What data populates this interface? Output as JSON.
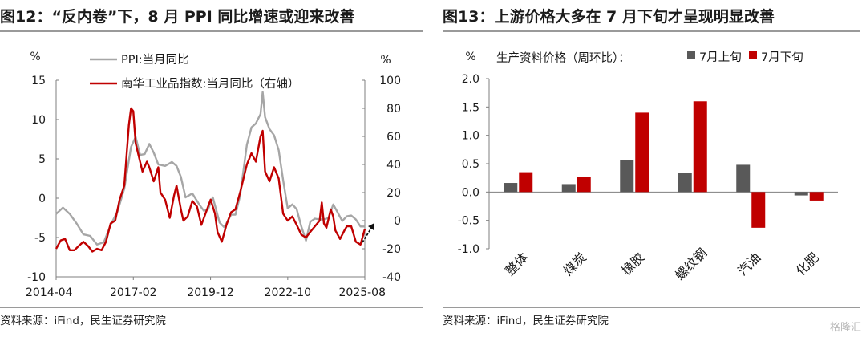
{
  "left": {
    "title": "图12：“反内卷”下，8 月 PPI 同比增速或迎来改善",
    "source": "资料来源：iFind，民生证券研究院",
    "chart_data": {
      "type": "line",
      "y_unit_left": "%",
      "y_unit_right": "%",
      "xlim": [
        2014.25,
        2025.58
      ],
      "ylim_left": [
        -10,
        15
      ],
      "ylim_right": [
        -40,
        100
      ],
      "yticks_left": [
        15,
        10,
        5,
        0,
        -5,
        -10
      ],
      "yticks_right": [
        100,
        80,
        60,
        40,
        20,
        0,
        -20,
        -40
      ],
      "xticks": [
        {
          "label": "2014-04",
          "x": 2014.25
        },
        {
          "label": "2017-02",
          "x": 2017.083
        },
        {
          "label": "2019-12",
          "x": 2019.917
        },
        {
          "label": "2022-10",
          "x": 2022.75
        },
        {
          "label": "2025-08",
          "x": 2025.58
        }
      ],
      "series": [
        {
          "name": "PPI:当月同比",
          "axis": "left",
          "color": "#a6a6a6",
          "points": [
            [
              2014.25,
              -2.0
            ],
            [
              2014.5,
              -1.2
            ],
            [
              2014.75,
              -2.0
            ],
            [
              2015.0,
              -3.2
            ],
            [
              2015.25,
              -4.6
            ],
            [
              2015.5,
              -4.8
            ],
            [
              2015.75,
              -5.9
            ],
            [
              2016.0,
              -5.6
            ],
            [
              2016.25,
              -3.4
            ],
            [
              2016.5,
              -1.7
            ],
            [
              2016.75,
              1.2
            ],
            [
              2017.0,
              6.5
            ],
            [
              2017.17,
              7.8
            ],
            [
              2017.33,
              5.5
            ],
            [
              2017.5,
              5.6
            ],
            [
              2017.67,
              6.9
            ],
            [
              2017.83,
              5.8
            ],
            [
              2018.0,
              4.3
            ],
            [
              2018.25,
              4.1
            ],
            [
              2018.5,
              4.6
            ],
            [
              2018.67,
              4.1
            ],
            [
              2018.83,
              2.7
            ],
            [
              2019.0,
              0.1
            ],
            [
              2019.25,
              0.6
            ],
            [
              2019.5,
              -0.8
            ],
            [
              2019.67,
              -1.6
            ],
            [
              2019.83,
              -1.4
            ],
            [
              2020.0,
              0.1
            ],
            [
              2020.25,
              -3.1
            ],
            [
              2020.42,
              -3.7
            ],
            [
              2020.67,
              -2.1
            ],
            [
              2020.83,
              -2.1
            ],
            [
              2021.0,
              0.3
            ],
            [
              2021.25,
              6.8
            ],
            [
              2021.42,
              9.0
            ],
            [
              2021.58,
              9.5
            ],
            [
              2021.75,
              10.7
            ],
            [
              2021.83,
              13.5
            ],
            [
              2021.92,
              10.3
            ],
            [
              2022.08,
              8.8
            ],
            [
              2022.25,
              8.0
            ],
            [
              2022.42,
              6.1
            ],
            [
              2022.58,
              2.3
            ],
            [
              2022.75,
              -1.3
            ],
            [
              2022.92,
              -0.8
            ],
            [
              2023.08,
              -1.4
            ],
            [
              2023.25,
              -3.6
            ],
            [
              2023.42,
              -5.4
            ],
            [
              2023.58,
              -3.0
            ],
            [
              2023.75,
              -2.6
            ],
            [
              2023.92,
              -2.7
            ],
            [
              2024.08,
              -2.7
            ],
            [
              2024.25,
              -2.5
            ],
            [
              2024.42,
              -0.8
            ],
            [
              2024.58,
              -1.8
            ],
            [
              2024.75,
              -2.9
            ],
            [
              2024.92,
              -2.3
            ],
            [
              2025.08,
              -2.2
            ],
            [
              2025.25,
              -2.7
            ],
            [
              2025.42,
              -3.6
            ],
            [
              2025.58,
              -3.6
            ]
          ]
        },
        {
          "name": "南华工业品指数:当月同比（右轴）",
          "axis": "right",
          "color": "#c00000",
          "points": [
            [
              2014.25,
              -20
            ],
            [
              2014.42,
              -14
            ],
            [
              2014.58,
              -13
            ],
            [
              2014.75,
              -21
            ],
            [
              2014.92,
              -21
            ],
            [
              2015.08,
              -18
            ],
            [
              2015.25,
              -15
            ],
            [
              2015.42,
              -18
            ],
            [
              2015.58,
              -22
            ],
            [
              2015.75,
              -20
            ],
            [
              2015.92,
              -21
            ],
            [
              2016.08,
              -15
            ],
            [
              2016.25,
              -2
            ],
            [
              2016.42,
              0
            ],
            [
              2016.58,
              15
            ],
            [
              2016.75,
              25
            ],
            [
              2016.92,
              68
            ],
            [
              2017.0,
              80
            ],
            [
              2017.08,
              78
            ],
            [
              2017.17,
              55
            ],
            [
              2017.33,
              42
            ],
            [
              2017.42,
              35
            ],
            [
              2017.58,
              42
            ],
            [
              2017.67,
              38
            ],
            [
              2017.83,
              28
            ],
            [
              2018.0,
              38
            ],
            [
              2018.08,
              20
            ],
            [
              2018.25,
              15
            ],
            [
              2018.42,
              2
            ],
            [
              2018.58,
              18
            ],
            [
              2018.67,
              25
            ],
            [
              2018.83,
              8
            ],
            [
              2018.92,
              0
            ],
            [
              2019.08,
              3
            ],
            [
              2019.25,
              14
            ],
            [
              2019.42,
              10
            ],
            [
              2019.58,
              -3
            ],
            [
              2019.75,
              6
            ],
            [
              2019.92,
              15
            ],
            [
              2020.08,
              5
            ],
            [
              2020.17,
              -8
            ],
            [
              2020.33,
              -15
            ],
            [
              2020.5,
              -3
            ],
            [
              2020.67,
              6
            ],
            [
              2020.83,
              8
            ],
            [
              2021.0,
              20
            ],
            [
              2021.25,
              40
            ],
            [
              2021.42,
              48
            ],
            [
              2021.58,
              42
            ],
            [
              2021.75,
              60
            ],
            [
              2021.83,
              64
            ],
            [
              2021.92,
              35
            ],
            [
              2022.08,
              28
            ],
            [
              2022.25,
              38
            ],
            [
              2022.42,
              30
            ],
            [
              2022.58,
              5
            ],
            [
              2022.75,
              0
            ],
            [
              2022.92,
              3
            ],
            [
              2023.08,
              -3
            ],
            [
              2023.25,
              -10
            ],
            [
              2023.42,
              -12
            ],
            [
              2023.58,
              -8
            ],
            [
              2023.75,
              -4
            ],
            [
              2023.92,
              0
            ],
            [
              2024.0,
              13
            ],
            [
              2024.08,
              -2
            ],
            [
              2024.17,
              -5
            ],
            [
              2024.33,
              8
            ],
            [
              2024.42,
              3
            ],
            [
              2024.5,
              -7
            ],
            [
              2024.67,
              -13
            ],
            [
              2024.83,
              -7
            ],
            [
              2024.92,
              -4
            ],
            [
              2025.08,
              -4
            ],
            [
              2025.25,
              -15
            ],
            [
              2025.42,
              -17
            ],
            [
              2025.58,
              -6
            ]
          ]
        }
      ]
    }
  },
  "right": {
    "title": "图13：上游价格大多在 7 月下旬才呈现明显改善",
    "source": "资料来源：iFind，民生证券研究院",
    "chart_data": {
      "type": "bar",
      "y_unit": "%",
      "legend_title": "生产资料价格（周环比）：",
      "categories": [
        "整体",
        "煤炭",
        "橡胶",
        "螺纹钢",
        "汽油",
        "化肥"
      ],
      "ylim": [
        -1.0,
        2.0
      ],
      "yticks": [
        2.0,
        1.5,
        1.0,
        0.5,
        0.0,
        -0.5,
        -1.0
      ],
      "ytick_labels": [
        "2.0",
        "1.5",
        "1.0",
        "0.5",
        "0.0",
        "-0.5",
        "-1.0"
      ],
      "series": [
        {
          "name": "7月上旬",
          "color": "#595959",
          "values": [
            0.16,
            0.14,
            0.56,
            0.34,
            0.48,
            -0.06
          ]
        },
        {
          "name": "7月下旬",
          "color": "#c00000",
          "values": [
            0.35,
            0.27,
            1.4,
            1.6,
            -0.63,
            -0.15
          ]
        }
      ]
    }
  },
  "watermark": "格隆汇"
}
